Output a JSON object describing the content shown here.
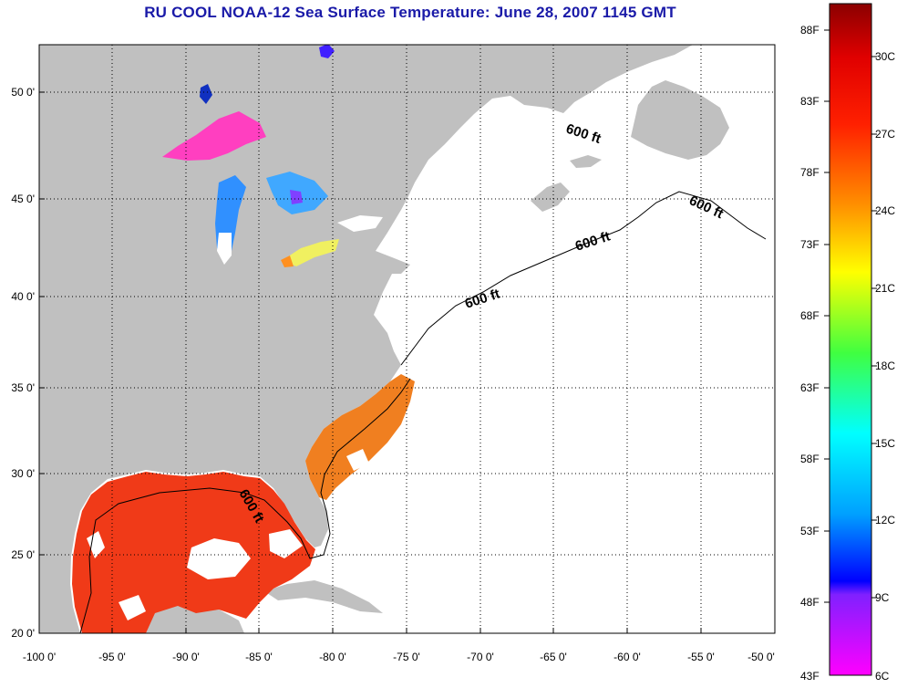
{
  "title": "RU COOL  NOAA-12  Sea Surface Temperature:  June 28, 2007 1145 GMT",
  "map": {
    "lon_range": [
      -100,
      -50
    ],
    "lat_range": [
      20,
      52
    ],
    "lon_ticks": [
      "-100 0'",
      "-95 0'",
      "-90 0'",
      "-85 0'",
      "-80 0'",
      "-75 0'",
      "-70 0'",
      "-65 0'",
      "-60 0'",
      "-55 0'",
      "-50 0'"
    ],
    "lat_ticks": [
      "50 0'",
      "45 0'",
      "40 0'",
      "35 0'",
      "30 0'",
      "25 0'",
      "20 0'"
    ],
    "grid": "dotted",
    "land_color": "#c0c0c0",
    "cloud_color": "#ffffff",
    "contour_labels": [
      "600 ft",
      "600 ft",
      "600 ft",
      "600 ft",
      "600 ft"
    ]
  },
  "colorbar": {
    "fahrenheit_labels": [
      "88F",
      "83F",
      "78F",
      "73F",
      "68F",
      "63F",
      "58F",
      "53F",
      "48F",
      "43F"
    ],
    "celsius_labels": [
      "30C",
      "27C",
      "24C",
      "21C",
      "18C",
      "15C",
      "12C",
      "9C",
      "6C"
    ],
    "colors_top_to_bottom": [
      "#8b0000",
      "#ff0000",
      "#ff8000",
      "#ffff00",
      "#00ff00",
      "#00ffff",
      "#0000ff",
      "#ff00ff"
    ]
  }
}
